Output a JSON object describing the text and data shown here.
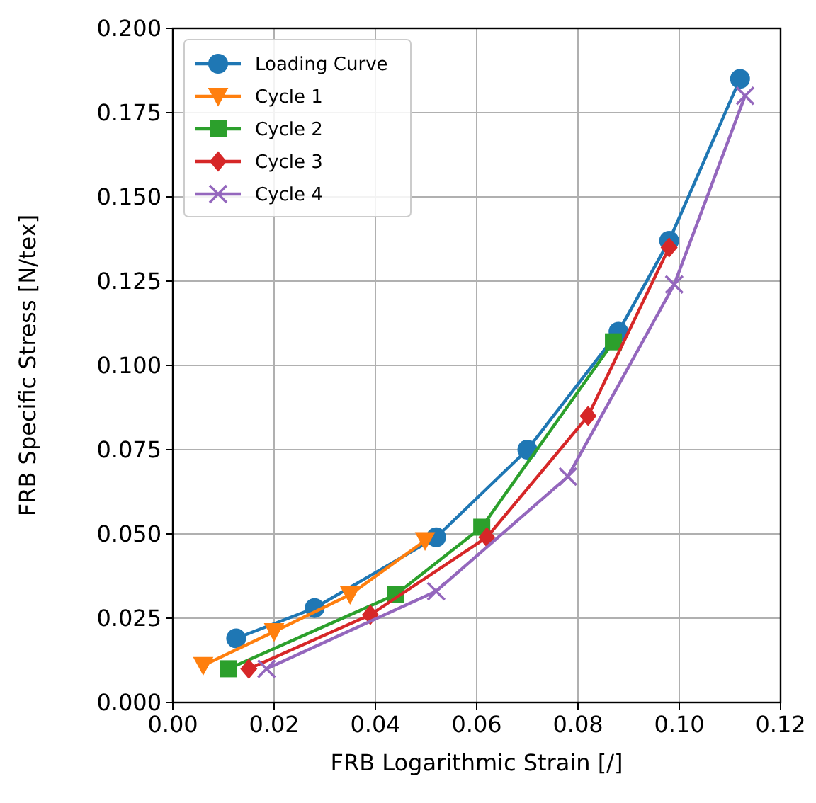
{
  "chart_data": {
    "type": "line",
    "xlabel": "FRB Logarithmic Strain [/]",
    "ylabel": "FRB Specific Stress [N/tex]",
    "xlim": [
      0,
      0.12
    ],
    "ylim": [
      0,
      0.2
    ],
    "xticks": [
      {
        "value": 0,
        "label": "0.00"
      },
      {
        "value": 0.02,
        "label": "0.02"
      },
      {
        "value": 0.04,
        "label": "0.04"
      },
      {
        "value": 0.06,
        "label": "0.06"
      },
      {
        "value": 0.08,
        "label": "0.08"
      },
      {
        "value": 0.1,
        "label": "0.10"
      },
      {
        "value": 0.12,
        "label": "0.12"
      }
    ],
    "yticks": [
      {
        "value": 0,
        "label": "0.000"
      },
      {
        "value": 0.025,
        "label": "0.025"
      },
      {
        "value": 0.05,
        "label": "0.050"
      },
      {
        "value": 0.075,
        "label": "0.075"
      },
      {
        "value": 0.1,
        "label": "0.100"
      },
      {
        "value": 0.125,
        "label": "0.125"
      },
      {
        "value": 0.15,
        "label": "0.150"
      },
      {
        "value": 0.175,
        "label": "0.175"
      },
      {
        "value": 0.2,
        "label": "0.200"
      }
    ],
    "grid": true,
    "legend": "top left",
    "line_style": "solid",
    "series": [
      {
        "name": "Loading Curve",
        "color": "#1f77b4",
        "marker": "circle",
        "x": [
          0.0125,
          0.028,
          0.052,
          0.07,
          0.088,
          0.098,
          0.112
        ],
        "values": [
          0.019,
          0.028,
          0.049,
          0.075,
          0.11,
          0.137,
          0.185
        ]
      },
      {
        "name": "Cycle 1",
        "color": "#ff7f0e",
        "marker": "triangle",
        "x": [
          0.006,
          0.02,
          0.035,
          0.0498
        ],
        "values": [
          0.011,
          0.021,
          0.032,
          0.048
        ]
      },
      {
        "name": "Cycle 2",
        "color": "#2ca02c",
        "marker": "square",
        "x": [
          0.011,
          0.044,
          0.061,
          0.087
        ],
        "values": [
          0.01,
          0.032,
          0.052,
          0.107
        ]
      },
      {
        "name": "Cycle 3",
        "color": "#d62728",
        "marker": "diamond",
        "x": [
          0.015,
          0.039,
          0.062,
          0.082,
          0.098
        ],
        "values": [
          0.01,
          0.026,
          0.049,
          0.085,
          0.135
        ]
      },
      {
        "name": "Cycle 4",
        "color": "#9467bd",
        "marker": "cross",
        "x": [
          0.0185,
          0.052,
          0.078,
          0.099,
          0.113
        ],
        "values": [
          0.01,
          0.033,
          0.067,
          0.124,
          0.18
        ]
      }
    ]
  }
}
